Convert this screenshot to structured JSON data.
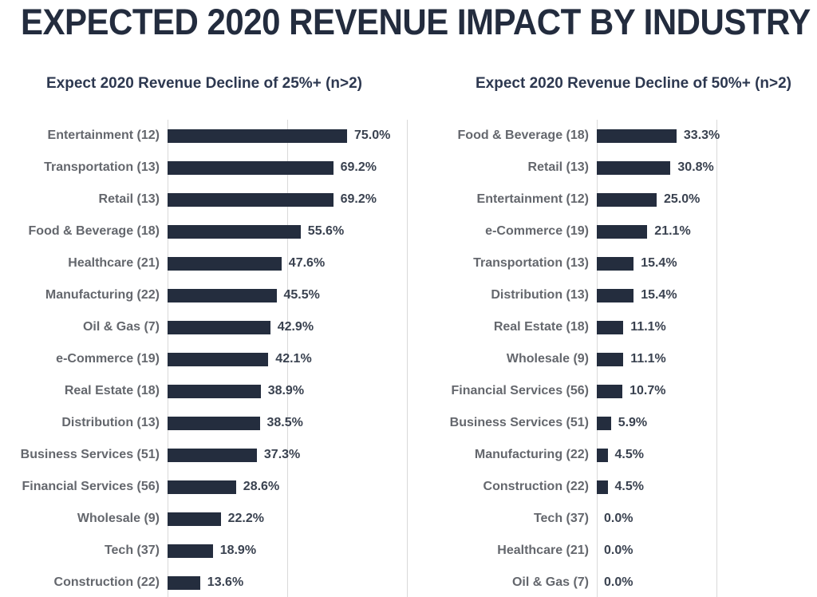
{
  "header": {
    "title": "EXPECTED 2020 REVENUE IMPACT BY INDUSTRY"
  },
  "colors": {
    "accent": "#C9A23E",
    "bar": "#242D3E",
    "gridline": "#D9D9D9",
    "title_text": "#232C3E",
    "category_text": "#64676D",
    "value_text": "#3A4250"
  },
  "chart_data": [
    {
      "type": "bar",
      "orientation": "horizontal",
      "title": "Expect 2020 Revenue Decline of 25%+ (n>2)",
      "xlim": [
        0,
        100
      ],
      "grid": true,
      "legend": false,
      "gridlines_pct": [
        0,
        50,
        100
      ],
      "categories": [
        "Entertainment (12)",
        "Transportation (13)",
        "Retail (13)",
        "Food & Beverage (18)",
        "Healthcare (21)",
        "Manufacturing (22)",
        "Oil & Gas (7)",
        "e-Commerce (19)",
        "Real Estate (18)",
        "Distribution (13)",
        "Business Services (51)",
        "Financial Services (56)",
        "Wholesale (9)",
        "Tech (37)",
        "Construction (22)"
      ],
      "values": [
        75.0,
        69.2,
        69.2,
        55.6,
        47.6,
        45.5,
        42.9,
        42.1,
        38.9,
        38.5,
        37.3,
        28.6,
        22.2,
        18.9,
        13.6
      ],
      "value_labels": [
        "75.0%",
        "69.2%",
        "69.2%",
        "55.6%",
        "47.6%",
        "45.5%",
        "42.9%",
        "42.1%",
        "38.9%",
        "38.5%",
        "37.3%",
        "28.6%",
        "22.2%",
        "18.9%",
        "13.6%"
      ]
    },
    {
      "type": "bar",
      "orientation": "horizontal",
      "title": "Expect 2020 Revenue Decline of 50%+ (n>2)",
      "xlim": [
        0,
        100
      ],
      "grid": true,
      "legend": false,
      "gridlines_pct": [
        0,
        50,
        100
      ],
      "categories": [
        "Food & Beverage (18)",
        "Retail (13)",
        "Entertainment (12)",
        "e-Commerce (19)",
        "Transportation (13)",
        "Distribution (13)",
        "Real Estate (18)",
        "Wholesale (9)",
        "Financial Services (56)",
        "Business Services (51)",
        "Manufacturing (22)",
        "Construction (22)",
        "Tech (37)",
        "Healthcare (21)",
        "Oil & Gas (7)"
      ],
      "values": [
        33.3,
        30.8,
        25.0,
        21.1,
        15.4,
        15.4,
        11.1,
        11.1,
        10.7,
        5.9,
        4.5,
        4.5,
        0.0,
        0.0,
        0.0
      ],
      "value_labels": [
        "33.3%",
        "30.8%",
        "25.0%",
        "21.1%",
        "15.4%",
        "15.4%",
        "11.1%",
        "11.1%",
        "10.7%",
        "5.9%",
        "4.5%",
        "4.5%",
        "0.0%",
        "0.0%",
        "0.0%"
      ]
    }
  ]
}
